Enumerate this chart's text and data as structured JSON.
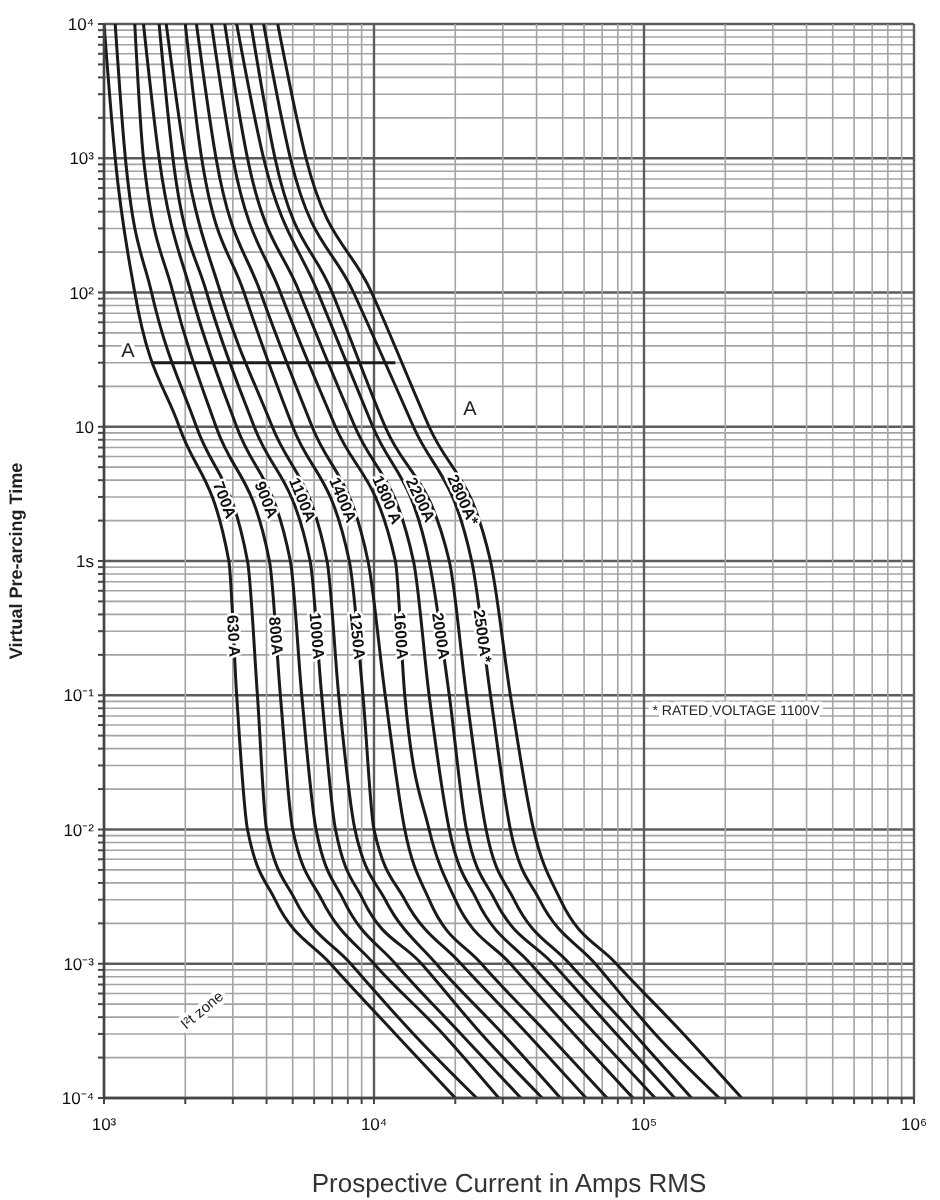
{
  "chart_data": {
    "type": "line",
    "xlabel": "Prospective Current in Amps RMS",
    "ylabel": "Virtual Pre-arcing Time",
    "log": "xy",
    "grid": true,
    "marker": "none",
    "xlim": [
      1000,
      1000000
    ],
    "ylim": [
      0.0001,
      10000
    ],
    "xticks": [
      {
        "value": 1000,
        "label": "10³"
      },
      {
        "value": 2000,
        "label": null
      },
      {
        "value": 3000,
        "label": null
      },
      {
        "value": 4000,
        "label": null
      },
      {
        "value": 5000,
        "label": null
      },
      {
        "value": 6000,
        "label": null
      },
      {
        "value": 7000,
        "label": null
      },
      {
        "value": 8000,
        "label": null
      },
      {
        "value": 9000,
        "label": null
      },
      {
        "value": 10000,
        "label": "10⁴"
      },
      {
        "value": 20000,
        "label": null
      },
      {
        "value": 30000,
        "label": null
      },
      {
        "value": 40000,
        "label": null
      },
      {
        "value": 50000,
        "label": null
      },
      {
        "value": 60000,
        "label": null
      },
      {
        "value": 70000,
        "label": null
      },
      {
        "value": 80000,
        "label": null
      },
      {
        "value": 90000,
        "label": null
      },
      {
        "value": 100000,
        "label": "10⁵"
      },
      {
        "value": 200000,
        "label": null
      },
      {
        "value": 300000,
        "label": null
      },
      {
        "value": 400000,
        "label": null
      },
      {
        "value": 500000,
        "label": null
      },
      {
        "value": 600000,
        "label": null
      },
      {
        "value": 700000,
        "label": null
      },
      {
        "value": 800000,
        "label": null
      },
      {
        "value": 900000,
        "label": null
      },
      {
        "value": 1000000,
        "label": "10⁶"
      }
    ],
    "yticks": [
      {
        "value": 0.0001,
        "label": "10⁻⁴"
      },
      {
        "value": 0.0002,
        "label": null
      },
      {
        "value": 0.0003,
        "label": null
      },
      {
        "value": 0.0004,
        "label": null
      },
      {
        "value": 0.0005,
        "label": null
      },
      {
        "value": 0.0006,
        "label": null
      },
      {
        "value": 0.0007,
        "label": null
      },
      {
        "value": 0.0008,
        "label": null
      },
      {
        "value": 0.0009,
        "label": null
      },
      {
        "value": 0.001,
        "label": "10⁻³"
      },
      {
        "value": 0.002,
        "label": null
      },
      {
        "value": 0.003,
        "label": null
      },
      {
        "value": 0.004,
        "label": null
      },
      {
        "value": 0.005,
        "label": null
      },
      {
        "value": 0.006,
        "label": null
      },
      {
        "value": 0.007,
        "label": null
      },
      {
        "value": 0.008,
        "label": null
      },
      {
        "value": 0.009,
        "label": null
      },
      {
        "value": 0.01,
        "label": "10⁻²"
      },
      {
        "value": 0.02,
        "label": null
      },
      {
        "value": 0.03,
        "label": null
      },
      {
        "value": 0.04,
        "label": null
      },
      {
        "value": 0.05,
        "label": null
      },
      {
        "value": 0.06,
        "label": null
      },
      {
        "value": 0.07,
        "label": null
      },
      {
        "value": 0.08,
        "label": null
      },
      {
        "value": 0.09,
        "label": null
      },
      {
        "value": 0.1,
        "label": "10⁻¹"
      },
      {
        "value": 0.2,
        "label": null
      },
      {
        "value": 0.3,
        "label": null
      },
      {
        "value": 0.4,
        "label": null
      },
      {
        "value": 0.5,
        "label": null
      },
      {
        "value": 0.6,
        "label": null
      },
      {
        "value": 0.7,
        "label": null
      },
      {
        "value": 0.8,
        "label": null
      },
      {
        "value": 0.9,
        "label": null
      },
      {
        "value": 1,
        "label": "1s"
      },
      {
        "value": 2,
        "label": null
      },
      {
        "value": 3,
        "label": null
      },
      {
        "value": 4,
        "label": null
      },
      {
        "value": 5,
        "label": null
      },
      {
        "value": 6,
        "label": null
      },
      {
        "value": 7,
        "label": null
      },
      {
        "value": 8,
        "label": null
      },
      {
        "value": 9,
        "label": null
      },
      10,
      {
        "value": 20,
        "label": null
      },
      {
        "value": 30,
        "label": null
      },
      {
        "value": 40,
        "label": null
      },
      {
        "value": 50,
        "label": null
      },
      {
        "value": 60,
        "label": null
      },
      {
        "value": 70,
        "label": null
      },
      {
        "value": 80,
        "label": null
      },
      {
        "value": 90,
        "label": null
      },
      {
        "value": 100,
        "label": "10²"
      },
      {
        "value": 200,
        "label": null
      },
      {
        "value": 300,
        "label": null
      },
      {
        "value": 400,
        "label": null
      },
      {
        "value": 500,
        "label": null
      },
      {
        "value": 600,
        "label": null
      },
      {
        "value": 700,
        "label": null
      },
      {
        "value": 800,
        "label": null
      },
      {
        "value": 900,
        "label": null
      },
      {
        "value": 1000,
        "label": "10³"
      },
      {
        "value": 2000,
        "label": null
      },
      {
        "value": 3000,
        "label": null
      },
      {
        "value": 4000,
        "label": null
      },
      {
        "value": 5000,
        "label": null
      },
      {
        "value": 6000,
        "label": null
      },
      {
        "value": 7000,
        "label": null
      },
      {
        "value": 8000,
        "label": null
      },
      {
        "value": 9000,
        "label": null
      },
      {
        "value": 10000,
        "label": "10⁴"
      }
    ],
    "series": [
      {
        "name": "630 A",
        "color": "#1a1a1a",
        "x": [
          1000,
          1100,
          1300,
          1900,
          2900,
          3100,
          3400,
          4300,
          6900,
          12000,
          20000
        ],
        "values": [
          10000,
          1000,
          100,
          10,
          1,
          0.1,
          0.01,
          0.003,
          0.001,
          0.0003,
          0.0001
        ]
      },
      {
        "name": "700A",
        "color": "#1a1a1a",
        "x": [
          1100,
          1200,
          1500,
          2200,
          3400,
          3700,
          4000,
          5100,
          8200,
          14000,
          24000
        ],
        "values": [
          10000,
          1000,
          100,
          10,
          1,
          0.1,
          0.01,
          0.003,
          0.001,
          0.0003,
          0.0001
        ]
      },
      {
        "name": "800A",
        "color": "#1a1a1a",
        "x": [
          1300,
          1400,
          1800,
          2600,
          4100,
          4500,
          5000,
          6400,
          10000,
          18000,
          29000
        ],
        "values": [
          10000,
          1000,
          100,
          10,
          1,
          0.1,
          0.01,
          0.003,
          0.001,
          0.0003,
          0.0001
        ]
      },
      {
        "name": "900A",
        "color": "#1a1a1a",
        "x": [
          1400,
          1600,
          2100,
          3100,
          4900,
          5400,
          6100,
          7700,
          12000,
          21000,
          35000
        ],
        "values": [
          10000,
          1000,
          100,
          10,
          1,
          0.1,
          0.01,
          0.003,
          0.001,
          0.0003,
          0.0001
        ]
      },
      {
        "name": "1000A",
        "color": "#1a1a1a",
        "x": [
          1600,
          1800,
          2400,
          3600,
          5800,
          6400,
          7200,
          9100,
          15000,
          25000,
          42000
        ],
        "values": [
          10000,
          1000,
          100,
          10,
          1,
          0.1,
          0.01,
          0.003,
          0.001,
          0.0003,
          0.0001
        ]
      },
      {
        "name": "1100A",
        "color": "#1a1a1a",
        "x": [
          1700,
          2000,
          2700,
          4200,
          6700,
          7400,
          8500,
          11000,
          17000,
          30000,
          49000
        ],
        "values": [
          10000,
          1000,
          100,
          10,
          1,
          0.1,
          0.01,
          0.003,
          0.001,
          0.0003,
          0.0001
        ]
      },
      {
        "name": "1250A",
        "color": "#1a1a1a",
        "x": [
          2000,
          2300,
          3300,
          5000,
          8100,
          9100,
          10000,
          13000,
          21000,
          37000,
          61000
        ],
        "values": [
          10000,
          1000,
          100,
          10,
          1,
          0.1,
          0.01,
          0.003,
          0.001,
          0.0003,
          0.0001
        ]
      },
      {
        "name": "1400A",
        "color": "#1a1a1a",
        "x": [
          2200,
          2600,
          3800,
          5900,
          9500,
          11000,
          13000,
          16000,
          25000,
          44000,
          73000
        ],
        "values": [
          10000,
          1000,
          100,
          10,
          1,
          0.1,
          0.01,
          0.003,
          0.001,
          0.0003,
          0.0001
        ]
      },
      {
        "name": "1600A",
        "color": "#1a1a1a",
        "x": [
          2500,
          3000,
          4500,
          7200,
          12000,
          13000,
          16000,
          20000,
          32000,
          55000,
          91000
        ],
        "values": [
          10000,
          1000,
          100,
          10,
          1,
          0.1,
          0.01,
          0.003,
          0.001,
          0.0003,
          0.0001
        ]
      },
      {
        "name": "1800 A",
        "color": "#1a1a1a",
        "x": [
          2800,
          3400,
          5300,
          8500,
          14000,
          16000,
          19000,
          24000,
          38000,
          66000,
          110000
        ],
        "values": [
          10000,
          1000,
          100,
          10,
          1,
          0.1,
          0.01,
          0.003,
          0.001,
          0.0003,
          0.0001
        ]
      },
      {
        "name": "2000A",
        "color": "#1a1a1a",
        "x": [
          3100,
          3900,
          6200,
          9900,
          16000,
          19000,
          22000,
          28000,
          46000,
          79000,
          130000
        ],
        "values": [
          10000,
          1000,
          100,
          10,
          1,
          0.1,
          0.01,
          0.003,
          0.001,
          0.0003,
          0.0001
        ]
      },
      {
        "name": "2200A",
        "color": "#1a1a1a",
        "x": [
          3500,
          4300,
          7000,
          11000,
          19000,
          22000,
          26000,
          33000,
          53000,
          92000,
          150000
        ],
        "values": [
          10000,
          1000,
          100,
          10,
          1,
          0.1,
          0.01,
          0.003,
          0.001,
          0.0003,
          0.0001
        ]
      },
      {
        "name": "2500A*",
        "color": "#1a1a1a",
        "x": [
          3900,
          4900,
          8400,
          14000,
          23000,
          27000,
          32000,
          41000,
          66000,
          110000,
          190000
        ],
        "values": [
          10000,
          1000,
          100,
          10,
          1,
          0.1,
          0.01,
          0.003,
          0.001,
          0.0003,
          0.0001
        ]
      },
      {
        "name": "2800A*",
        "color": "#1a1a1a",
        "x": [
          4400,
          5600,
          9800,
          16000,
          27000,
          32000,
          39000,
          49000,
          79000,
          140000,
          230000
        ],
        "values": [
          10000,
          1000,
          100,
          10,
          1,
          0.1,
          0.01,
          0.003,
          0.001,
          0.0003,
          0.0001
        ]
      },
      {
        "color": "#1a1a1a",
        "x": [
          1500,
          12000
        ],
        "values": [
          30,
          30
        ]
      }
    ],
    "annotations": [
      "A",
      "A",
      "* RATED VOLTAGE 1100V",
      "I²t zone"
    ]
  }
}
